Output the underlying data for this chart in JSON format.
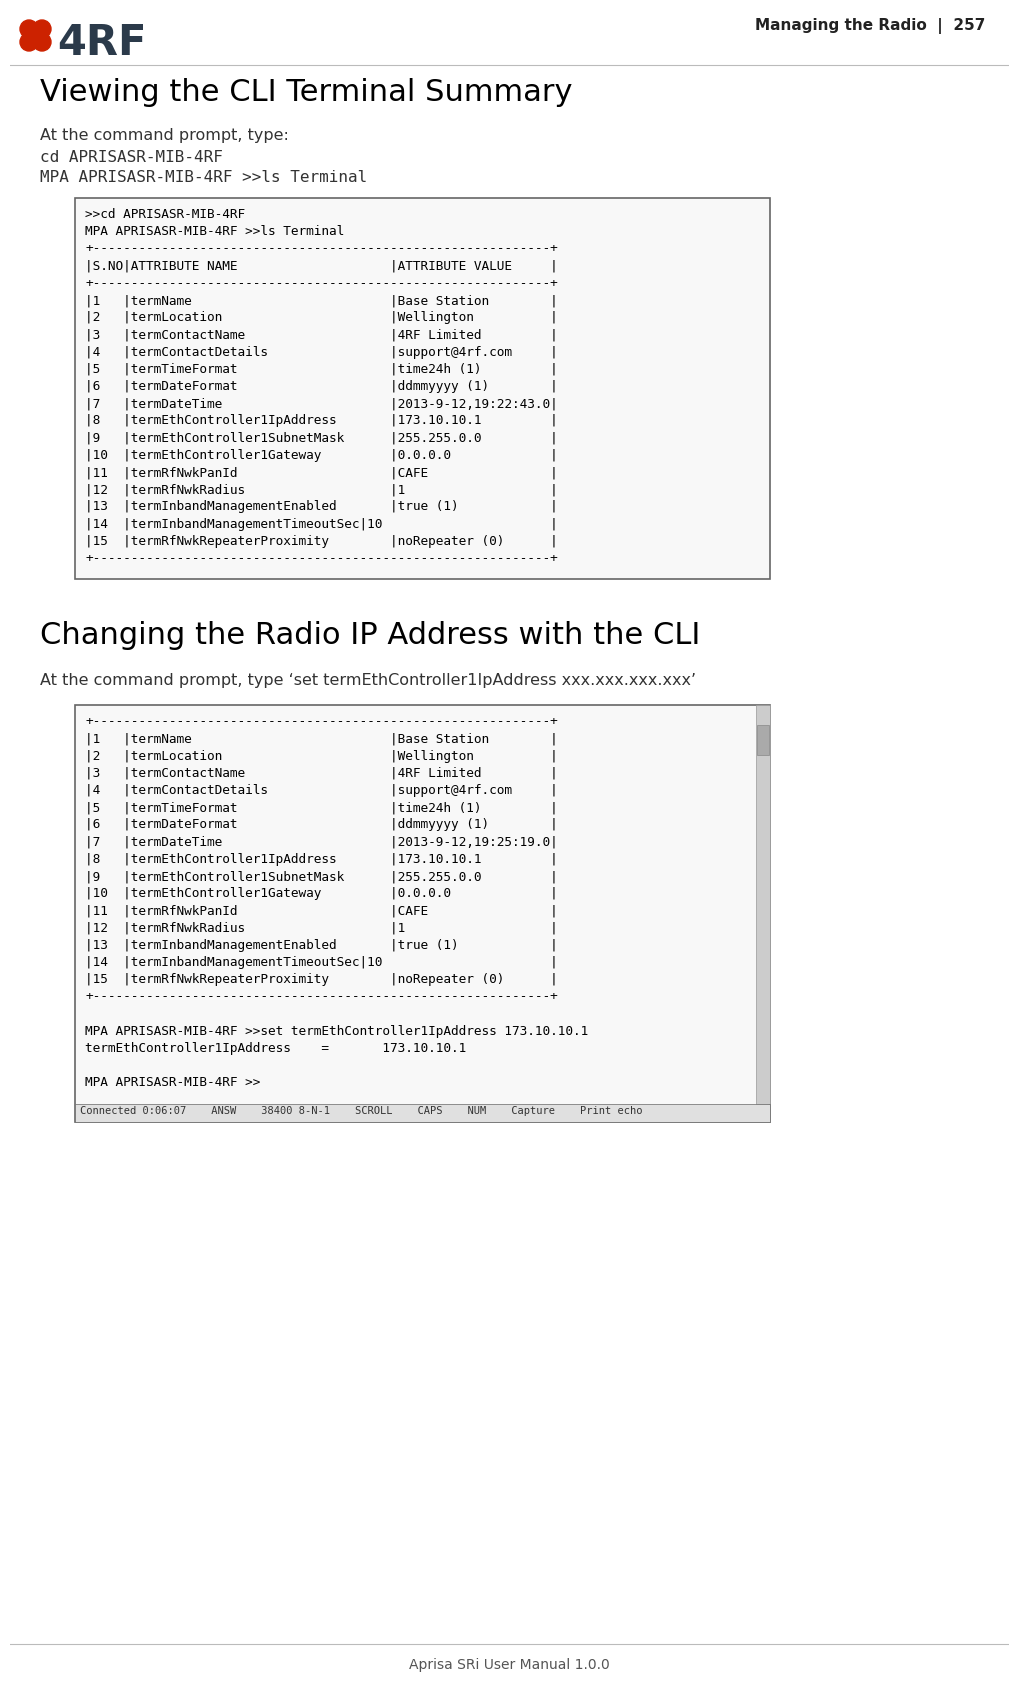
{
  "page_header_right": "Managing the Radio  |  257",
  "page_footer": "Aprisa SRi User Manual 1.0.0",
  "section1_title": "Viewing the CLI Terminal Summary",
  "section1_intro": "At the command prompt, type:",
  "section1_cmd1": "cd APRISASR-MIB-4RF",
  "section1_cmd2": "MPA APRISASR-MIB-4RF >>ls Terminal",
  "terminal1_lines": [
    ">>cd APRISASR-MIB-4RF",
    "MPA APRISASR-MIB-4RF >>ls Terminal",
    "+------------------------------------------------------------+",
    "|S.NO|ATTRIBUTE NAME                    |ATTRIBUTE VALUE     |",
    "+------------------------------------------------------------+",
    "|1   |termName                          |Base Station        |",
    "|2   |termLocation                      |Wellington          |",
    "|3   |termContactName                   |4RF Limited         |",
    "|4   |termContactDetails                |support@4rf.com     |",
    "|5   |termTimeFormat                    |time24h (1)         |",
    "|6   |termDateFormat                    |ddmmyyyy (1)        |",
    "|7   |termDateTime                      |2013-9-12,19:22:43.0|",
    "|8   |termEthController1IpAddress       |173.10.10.1         |",
    "|9   |termEthController1SubnetMask      |255.255.0.0         |",
    "|10  |termEthController1Gateway         |0.0.0.0             |",
    "|11  |termRfNwkPanId                    |CAFE                |",
    "|12  |termRfNwkRadius                   |1                   |",
    "|13  |termInbandManagementEnabled       |true (1)            |",
    "|14  |termInbandManagementTimeoutSec|10                      |",
    "|15  |termRfNwkRepeaterProximity        |noRepeater (0)      |",
    "+------------------------------------------------------------+"
  ],
  "section2_title": "Changing the Radio IP Address with the CLI",
  "section2_intro": "At the command prompt, type ‘set termEthController1IpAddress xxx.xxx.xxx.xxx’",
  "terminal2_lines": [
    "+------------------------------------------------------------+",
    "|1   |termName                          |Base Station        |",
    "|2   |termLocation                      |Wellington          |",
    "|3   |termContactName                   |4RF Limited         |",
    "|4   |termContactDetails                |support@4rf.com     |",
    "|5   |termTimeFormat                    |time24h (1)         |",
    "|6   |termDateFormat                    |ddmmyyyy (1)        |",
    "|7   |termDateTime                      |2013-9-12,19:25:19.0|",
    "|8   |termEthController1IpAddress       |173.10.10.1         |",
    "|9   |termEthController1SubnetMask      |255.255.0.0         |",
    "|10  |termEthController1Gateway         |0.0.0.0             |",
    "|11  |termRfNwkPanId                    |CAFE                |",
    "|12  |termRfNwkRadius                   |1                   |",
    "|13  |termInbandManagementEnabled       |true (1)            |",
    "|14  |termInbandManagementTimeoutSec|10                      |",
    "|15  |termRfNwkRepeaterProximity        |noRepeater (0)      |",
    "+------------------------------------------------------------+",
    "",
    "MPA APRISASR-MIB-4RF >>set termEthController1IpAddress 173.10.10.1",
    "termEthController1IpAddress    =       173.10.10.1",
    "",
    "MPA APRISASR-MIB-4RF >>"
  ],
  "terminal2_statusbar": "Connected 0:06:07    ANSW    38400 8-N-1    SCROLL    CAPS    NUM    Capture    Print echo",
  "bg_color": "#ffffff",
  "logo_red": "#cc2200",
  "logo_dark": "#2b3a4a",
  "header_text_color": "#222222",
  "title_color": "#000000",
  "body_color": "#333333",
  "mono_color": "#000000",
  "terminal_bg": "#f8f8f8",
  "terminal_border": "#666666",
  "statusbar_bg": "#e0e0e0",
  "footer_color": "#555555",
  "scrollbar_bg": "#cccccc",
  "scrollbar_border": "#999999"
}
